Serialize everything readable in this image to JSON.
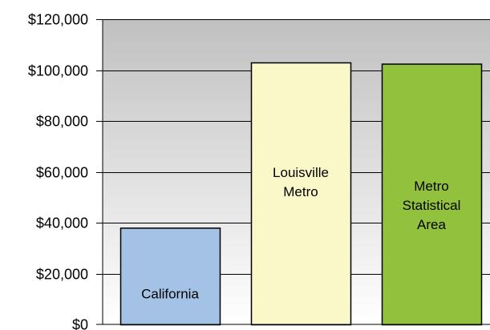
{
  "chart_data": {
    "type": "bar",
    "title": "",
    "xlabel": "",
    "ylabel": "",
    "ylim": [
      0,
      120000
    ],
    "yticks": [
      0,
      20000,
      40000,
      60000,
      80000,
      100000,
      120000
    ],
    "ytick_labels": [
      "$0",
      "$20,000",
      "$40,000",
      "$60,000",
      "$80,000",
      "$100,000",
      "$120,000"
    ],
    "grid": true,
    "legend": "none",
    "categories": [
      "California",
      "Louisville Metro",
      "Metro Statistical Area"
    ],
    "category_label_lines": [
      [
        "California"
      ],
      [
        "Louisville",
        "Metro"
      ],
      [
        "Metro",
        "Statistical",
        "Area"
      ]
    ],
    "values": [
      38000,
      103000,
      102500
    ],
    "colors": {
      "bars": [
        "#a4c2e6",
        "#faf7c8",
        "#92c13e"
      ],
      "plot_background_top": "#c0c0c0",
      "plot_background_bottom": "#ffffff",
      "bar_outline": "#000000",
      "gridline": "#000000"
    }
  }
}
